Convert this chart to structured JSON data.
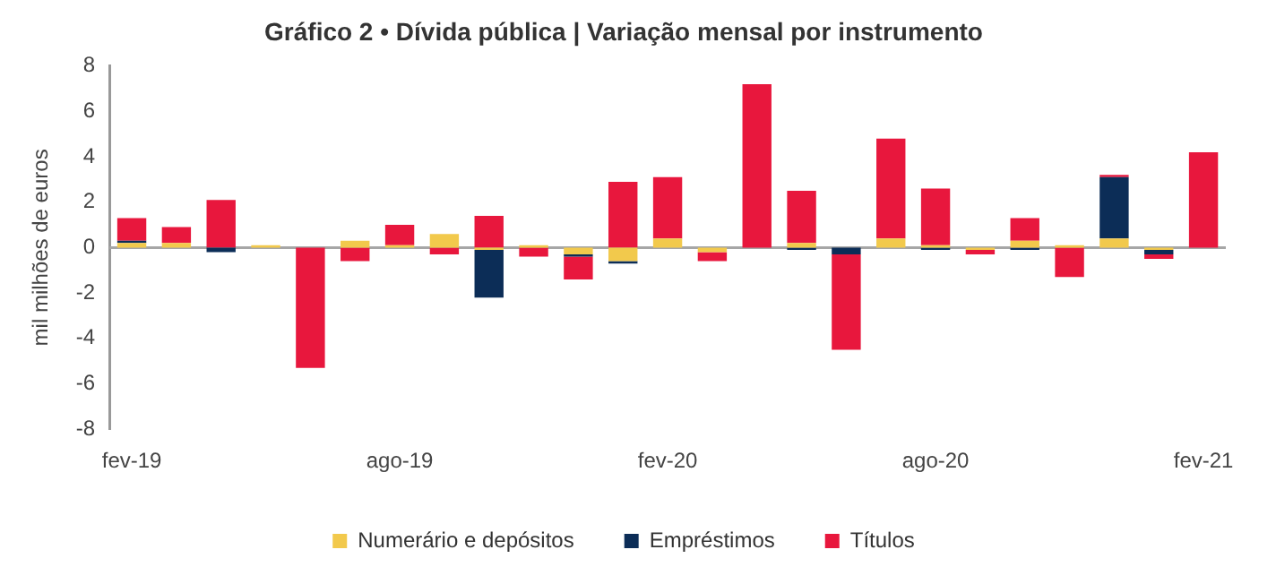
{
  "chart_data": {
    "type": "bar",
    "title": "Gráfico 2 • Dívida pública | Variação mensal por instrumento",
    "ylabel": "mil milhões de euros",
    "categories": [
      "fev-19",
      null,
      null,
      null,
      null,
      null,
      "ago-19",
      null,
      null,
      null,
      null,
      null,
      "fev-20",
      null,
      null,
      null,
      null,
      null,
      "ago-20",
      null,
      null,
      null,
      null,
      null,
      "fev-21"
    ],
    "stacked": true,
    "series": [
      {
        "name": "Numerário e depósitos",
        "color": "#f2c94c",
        "values": [
          0.2,
          0.2,
          0,
          0.1,
          0,
          0.3,
          0.1,
          0.6,
          -0.1,
          0.1,
          -0.3,
          -0.6,
          0.4,
          -0.2,
          0,
          0.2,
          0,
          0.4,
          0.1,
          -0.1,
          0.3,
          0.1,
          0.4,
          -0.1,
          0
        ]
      },
      {
        "name": "Empréstimos",
        "color": "#0c2d57",
        "values": [
          0.1,
          0,
          -0.2,
          0,
          0,
          0,
          0,
          0,
          -2.1,
          0,
          -0.1,
          -0.1,
          0,
          0,
          0,
          -0.1,
          -0.3,
          0,
          -0.1,
          0,
          -0.1,
          0,
          2.7,
          -0.2,
          0
        ]
      },
      {
        "name": "Títulos",
        "color": "#e8173d",
        "values": [
          1.0,
          0.7,
          2.1,
          0,
          -5.3,
          -0.6,
          0.9,
          -0.3,
          1.4,
          -0.4,
          -1.0,
          2.9,
          2.7,
          -0.4,
          7.2,
          2.3,
          -4.2,
          4.4,
          2.5,
          -0.2,
          1.0,
          -1.3,
          0.1,
          -0.2,
          4.2
        ]
      }
    ],
    "ylim": [
      -8,
      8
    ],
    "yticks": [
      -8,
      -6,
      -4,
      -2,
      0,
      2,
      4,
      6,
      8
    ],
    "legend": "bottom"
  }
}
